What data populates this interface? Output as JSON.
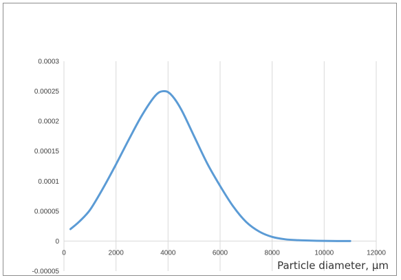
{
  "chart_data": {
    "type": "line",
    "title": "",
    "xlabel": "Particle diameter, µm",
    "ylabel": "",
    "xlim": [
      0,
      12000
    ],
    "ylim": [
      -5e-05,
      0.0003
    ],
    "grid": {
      "vertical": true,
      "horizontal": false
    },
    "x_ticks": [
      0,
      2000,
      4000,
      6000,
      8000,
      10000,
      12000
    ],
    "x_tick_labels": [
      "0",
      "2000",
      "4000",
      "6000",
      "8000",
      "10000",
      "12000"
    ],
    "y_ticks": [
      -5e-05,
      0,
      5e-05,
      0.0001,
      0.00015,
      0.0002,
      0.00025,
      0.0003
    ],
    "y_tick_labels": [
      "-0.00005",
      "0",
      "0.00005",
      "0.0001",
      "0.00015",
      "0.0002",
      "0.00025",
      "0.0003"
    ],
    "series_color": "#5b9bd5",
    "series": [
      {
        "name": "",
        "x": [
          250,
          600,
          1000,
          1500,
          2000,
          2500,
          3000,
          3500,
          3800,
          4100,
          4500,
          5000,
          5500,
          6000,
          6500,
          7000,
          7500,
          8000,
          8500,
          9000,
          9500,
          10000,
          10500,
          11000
        ],
        "y": [
          2e-05,
          3.3e-05,
          5.2e-05,
          8.8e-05,
          0.000128,
          0.00017,
          0.00021,
          0.000242,
          0.00025,
          0.000245,
          0.00022,
          0.000175,
          0.00013,
          9.2e-05,
          5.8e-05,
          3.2e-05,
          1.6e-05,
          7e-06,
          3e-06,
          1.5e-06,
          8e-07,
          3e-07,
          1e-07,
          0.0
        ]
      }
    ]
  }
}
